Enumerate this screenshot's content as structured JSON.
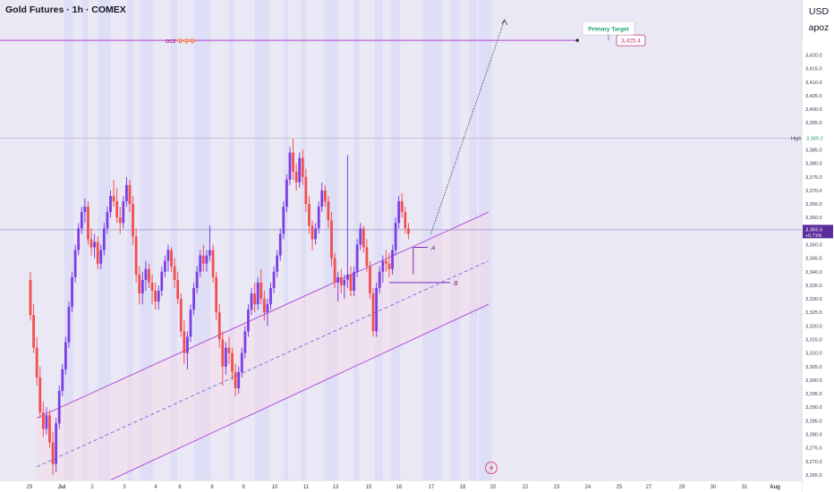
{
  "header": {
    "title": "Gold Futures · 1h · COMEX",
    "currency": "USD",
    "scale_mode": "apoz"
  },
  "colors": {
    "up": "#7b3fe4",
    "down": "#f0504f",
    "channel": "#b150d8",
    "target_line": "#b040d0",
    "label_bg": "#5b2c9a",
    "band": "#dcdcf7"
  },
  "chart_data": {
    "type": "candlestick",
    "symbol": "Gold Futures",
    "interval": "1h",
    "exchange": "COMEX",
    "x_ticks": [
      "29",
      "Jul",
      "2",
      "3",
      "4",
      "6",
      "8",
      "9",
      "10",
      "11",
      "13",
      "15",
      "16",
      "17",
      "18",
      "20",
      "22",
      "23",
      "24",
      "25",
      "27",
      "29",
      "30",
      "31",
      "Aug"
    ],
    "y_ticks": [
      3265,
      3270,
      3275,
      3280,
      3285,
      3290,
      3295,
      3300,
      3305,
      3310,
      3315,
      3320,
      3325,
      3330,
      3335,
      3340,
      3345,
      3350,
      3355,
      3360,
      3365,
      3370,
      3375,
      3380,
      3385,
      3390,
      3395,
      3400,
      3405,
      3410,
      3415,
      3420,
      3425,
      3430
    ],
    "ylim": [
      3263,
      3437
    ],
    "session_bands": [
      [
        1.05,
        1.35
      ],
      [
        1.62,
        1.8
      ],
      [
        2.1,
        2.5
      ],
      [
        3.02,
        3.2
      ],
      [
        3.42,
        3.82
      ],
      [
        4.38,
        4.58
      ],
      [
        5.1,
        5.62
      ],
      [
        6.2,
        6.35
      ],
      [
        7.0,
        7.45
      ],
      [
        7.9,
        8.05
      ],
      [
        8.45,
        8.6
      ],
      [
        9.18,
        9.6
      ],
      [
        10.1,
        10.25
      ],
      [
        10.75,
        11.0
      ],
      [
        11.25,
        11.55
      ],
      [
        12.25,
        12.85
      ],
      [
        13.1,
        13.4
      ],
      [
        13.7,
        13.95
      ],
      [
        14.0,
        14.4
      ]
    ],
    "candles": [
      [
        0.0,
        3337.0,
        3340.0,
        3322.0,
        3324.0
      ],
      [
        0.1,
        3324.0,
        3328.0,
        3310.0,
        3312.0
      ],
      [
        0.2,
        3312.0,
        3316.0,
        3298.0,
        3301.0
      ],
      [
        0.3,
        3301.0,
        3305.0,
        3286.0,
        3288.0
      ],
      [
        0.4,
        3288.0,
        3292.0,
        3279.0,
        3282.0
      ],
      [
        0.5,
        3282.0,
        3290.0,
        3280.0,
        3287.0
      ],
      [
        0.6,
        3287.0,
        3289.0,
        3275.0,
        3277.0
      ],
      [
        0.7,
        3277.0,
        3281.0,
        3265.0,
        3269.0
      ],
      [
        0.8,
        3269.0,
        3286.0,
        3266.0,
        3284.0
      ],
      [
        0.9,
        3284.0,
        3298.0,
        3282.0,
        3296.0
      ],
      [
        1.0,
        3296.0,
        3306.0,
        3294.0,
        3304.0
      ],
      [
        1.1,
        3304.0,
        3316.0,
        3302.0,
        3314.0
      ],
      [
        1.2,
        3314.0,
        3329.0,
        3312.0,
        3327.0
      ],
      [
        1.3,
        3327.0,
        3340.0,
        3325.0,
        3338.0
      ],
      [
        1.4,
        3338.0,
        3350.0,
        3336.0,
        3348.0
      ],
      [
        1.5,
        3348.0,
        3358.0,
        3346.0,
        3356.0
      ],
      [
        1.6,
        3356.0,
        3364.0,
        3354.0,
        3362.0
      ],
      [
        1.7,
        3362.0,
        3367.0,
        3358.0,
        3364.0
      ],
      [
        1.8,
        3364.0,
        3366.0,
        3350.0,
        3352.0
      ],
      [
        1.9,
        3352.0,
        3356.0,
        3346.0,
        3349.0
      ],
      [
        2.0,
        3349.0,
        3354.0,
        3345.0,
        3351.0
      ],
      [
        2.1,
        3351.0,
        3353.0,
        3341.0,
        3343.0
      ],
      [
        2.2,
        3343.0,
        3350.0,
        3341.0,
        3348.0
      ],
      [
        2.3,
        3348.0,
        3358.0,
        3346.0,
        3356.0
      ],
      [
        2.4,
        3356.0,
        3364.0,
        3354.0,
        3362.0
      ],
      [
        2.5,
        3362.0,
        3370.0,
        3360.0,
        3368.0
      ],
      [
        2.6,
        3368.0,
        3374.0,
        3364.0,
        3366.0
      ],
      [
        2.7,
        3366.0,
        3371.0,
        3358.0,
        3360.0
      ],
      [
        2.8,
        3360.0,
        3364.0,
        3354.0,
        3358.0
      ],
      [
        2.9,
        3358.0,
        3368.0,
        3356.0,
        3366.0
      ],
      [
        3.0,
        3366.0,
        3375.0,
        3364.0,
        3372.0
      ],
      [
        3.1,
        3372.0,
        3374.0,
        3362.0,
        3365.0
      ],
      [
        3.2,
        3365.0,
        3368.0,
        3350.0,
        3353.0
      ],
      [
        3.3,
        3353.0,
        3356.0,
        3336.0,
        3339.0
      ],
      [
        3.4,
        3339.0,
        3342.0,
        3328.0,
        3332.0
      ],
      [
        3.5,
        3332.0,
        3340.0,
        3328.0,
        3337.0
      ],
      [
        3.6,
        3337.0,
        3344.0,
        3333.0,
        3341.0
      ],
      [
        3.7,
        3341.0,
        3343.0,
        3334.0,
        3336.0
      ],
      [
        3.8,
        3336.0,
        3339.0,
        3328.0,
        3333.0
      ],
      [
        3.9,
        3333.0,
        3336.0,
        3326.0,
        3329.0
      ],
      [
        4.0,
        3329.0,
        3335.0,
        3326.0,
        3333.0
      ],
      [
        4.1,
        3333.0,
        3342.0,
        3331.0,
        3340.0
      ],
      [
        4.2,
        3340.0,
        3346.0,
        3338.0,
        3344.0
      ],
      [
        4.3,
        3344.0,
        3350.0,
        3340.0,
        3348.0
      ],
      [
        4.4,
        3348.0,
        3349.0,
        3340.0,
        3342.0
      ],
      [
        4.5,
        3342.0,
        3345.0,
        3334.0,
        3337.0
      ],
      [
        4.6,
        3337.0,
        3340.0,
        3328.0,
        3330.0
      ],
      [
        4.7,
        3330.0,
        3332.0,
        3316.0,
        3318.0
      ],
      [
        4.8,
        3318.0,
        3322.0,
        3306.0,
        3310.0
      ],
      [
        4.9,
        3310.0,
        3318.0,
        3304.0,
        3316.0
      ],
      [
        5.0,
        3316.0,
        3328.0,
        3314.0,
        3326.0
      ],
      [
        5.1,
        3326.0,
        3336.0,
        3324.0,
        3334.0
      ],
      [
        5.2,
        3334.0,
        3342.0,
        3332.0,
        3340.0
      ],
      [
        5.3,
        3340.0,
        3348.0,
        3338.0,
        3346.0
      ],
      [
        5.4,
        3346.0,
        3350.0,
        3340.0,
        3343.0
      ],
      [
        5.5,
        3343.0,
        3348.0,
        3340.0,
        3346.0
      ],
      [
        5.6,
        3346.0,
        3357.0,
        3344.0,
        3348.0
      ],
      [
        5.7,
        3348.0,
        3350.0,
        3336.0,
        3338.0
      ],
      [
        5.8,
        3338.0,
        3340.0,
        3322.0,
        3325.0
      ],
      [
        5.9,
        3325.0,
        3328.0,
        3312.0,
        3315.0
      ],
      [
        6.0,
        3315.0,
        3318.0,
        3298.0,
        3305.0
      ],
      [
        6.1,
        3305.0,
        3314.0,
        3302.0,
        3312.0
      ],
      [
        6.2,
        3312.0,
        3316.0,
        3306.0,
        3310.0
      ],
      [
        6.3,
        3310.0,
        3312.0,
        3300.0,
        3303.0
      ],
      [
        6.4,
        3303.0,
        3306.0,
        3294.0,
        3297.0
      ],
      [
        6.5,
        3297.0,
        3305.0,
        3295.0,
        3303.0
      ],
      [
        6.6,
        3303.0,
        3312.0,
        3301.0,
        3310.0
      ],
      [
        6.7,
        3310.0,
        3320.0,
        3308.0,
        3318.0
      ],
      [
        6.8,
        3318.0,
        3328.0,
        3316.0,
        3326.0
      ],
      [
        6.9,
        3326.0,
        3334.0,
        3324.0,
        3332.0
      ],
      [
        7.0,
        3332.0,
        3336.0,
        3325.0,
        3328.0
      ],
      [
        7.1,
        3328.0,
        3338.0,
        3326.0,
        3336.0
      ],
      [
        7.2,
        3336.0,
        3341.0,
        3328.0,
        3330.0
      ],
      [
        7.3,
        3330.0,
        3333.0,
        3322.0,
        3325.0
      ],
      [
        7.4,
        3325.0,
        3330.0,
        3320.0,
        3328.0
      ],
      [
        7.5,
        3328.0,
        3336.0,
        3326.0,
        3334.0
      ],
      [
        7.6,
        3334.0,
        3342.0,
        3332.0,
        3340.0
      ],
      [
        7.7,
        3340.0,
        3348.0,
        3338.0,
        3346.0
      ],
      [
        7.8,
        3346.0,
        3356.0,
        3344.0,
        3354.0
      ],
      [
        7.9,
        3354.0,
        3366.0,
        3352.0,
        3364.0
      ],
      [
        8.0,
        3364.0,
        3376.0,
        3362.0,
        3374.0
      ],
      [
        8.1,
        3374.0,
        3386.0,
        3372.0,
        3384.0
      ],
      [
        8.2,
        3384.0,
        3389.0,
        3374.0,
        3377.0
      ],
      [
        8.3,
        3377.0,
        3380.0,
        3370.0,
        3373.0
      ],
      [
        8.4,
        3373.0,
        3384.0,
        3371.0,
        3382.0
      ],
      [
        8.5,
        3382.0,
        3385.0,
        3372.0,
        3375.0
      ],
      [
        8.6,
        3375.0,
        3378.0,
        3362.0,
        3365.0
      ],
      [
        8.7,
        3365.0,
        3368.0,
        3354.0,
        3357.0
      ],
      [
        8.8,
        3357.0,
        3359.0,
        3348.0,
        3352.0
      ],
      [
        8.9,
        3352.0,
        3358.0,
        3350.0,
        3356.0
      ],
      [
        9.0,
        3356.0,
        3366.0,
        3354.0,
        3364.0
      ],
      [
        9.1,
        3364.0,
        3373.0,
        3362.0,
        3370.0
      ],
      [
        9.2,
        3370.0,
        3372.0,
        3364.0,
        3366.0
      ],
      [
        9.3,
        3366.0,
        3368.0,
        3356.0,
        3359.0
      ],
      [
        9.4,
        3359.0,
        3362.0,
        3342.0,
        3345.0
      ],
      [
        9.5,
        3345.0,
        3347.0,
        3334.0,
        3336.0
      ],
      [
        9.6,
        3336.0,
        3340.0,
        3329.0,
        3338.0
      ],
      [
        9.7,
        3338.0,
        3341.0,
        3332.0,
        3335.0
      ],
      [
        9.8,
        3335.0,
        3339.0,
        3330.0,
        3337.0
      ],
      [
        9.9,
        3337.0,
        3383.0,
        3334.0,
        3339.0
      ],
      [
        10.0,
        3339.0,
        3342.0,
        3331.0,
        3333.0
      ],
      [
        10.1,
        3333.0,
        3342.0,
        3331.0,
        3340.0
      ],
      [
        10.2,
        3340.0,
        3352.0,
        3338.0,
        3350.0
      ],
      [
        10.3,
        3350.0,
        3358.0,
        3348.0,
        3356.0
      ],
      [
        10.4,
        3356.0,
        3357.0,
        3347.0,
        3349.0
      ],
      [
        10.5,
        3349.0,
        3352.0,
        3340.0,
        3342.0
      ],
      [
        10.6,
        3342.0,
        3344.0,
        3330.0,
        3332.0
      ],
      [
        10.7,
        3332.0,
        3334.0,
        3316.0,
        3318.0
      ],
      [
        10.8,
        3318.0,
        3336.0,
        3316.0,
        3334.0
      ],
      [
        10.9,
        3334.0,
        3342.0,
        3332.0,
        3340.0
      ],
      [
        11.0,
        3340.0,
        3346.0,
        3336.0,
        3344.0
      ],
      [
        11.1,
        3344.0,
        3348.0,
        3340.0,
        3343.0
      ],
      [
        11.2,
        3343.0,
        3347.0,
        3338.0,
        3341.0
      ],
      [
        11.3,
        3341.0,
        3350.0,
        3339.0,
        3348.0
      ],
      [
        11.4,
        3348.0,
        3360.0,
        3346.0,
        3358.0
      ],
      [
        11.5,
        3358.0,
        3368.0,
        3356.0,
        3366.0
      ],
      [
        11.6,
        3366.0,
        3369.0,
        3360.0,
        3362.0
      ],
      [
        11.7,
        3362.0,
        3364.0,
        3354.0,
        3356.0
      ],
      [
        11.8,
        3356.0,
        3358.0,
        3352.0,
        3354.0
      ]
    ],
    "high_price": 3389.3,
    "last_price": 3355.5,
    "change_percent": "+0.71%",
    "target_price": 3425.4,
    "channel": {
      "upper": [
        [
          0.2,
          3286.0
        ],
        [
          14.3,
          3362.0
        ]
      ],
      "mid": [
        [
          0.2,
          3268.0
        ],
        [
          14.3,
          3344.0
        ]
      ],
      "lower": [
        [
          2.3,
          3262.0
        ],
        [
          14.3,
          3328.0
        ]
      ],
      "upper_label": "",
      "lower_label": ""
    },
    "levels": [
      {
        "name": "A",
        "x1": 11.95,
        "x2": 12.4,
        "y": 3349.0,
        "start": [
          11.7,
          3349.0
        ]
      },
      {
        "name": "B",
        "x1": 11.2,
        "x2": 13.1,
        "y": 3336.0
      }
    ],
    "ocz_label": "OCZ 🍄🍄🍄",
    "projection": {
      "from": [
        12.5,
        3354.0
      ],
      "to": [
        14.8,
        3433.0
      ]
    },
    "primary_target_label": "Primary Target",
    "target_price_label": "3,425.4",
    "high_label": "High",
    "high_value_label": "3,389.3",
    "last_value_label": "3,355.5"
  }
}
